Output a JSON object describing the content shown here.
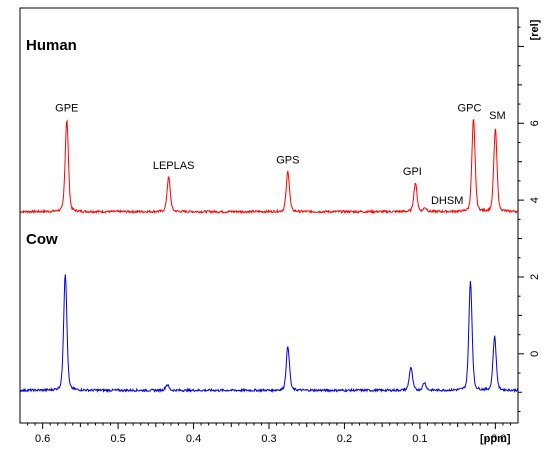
{
  "chart_data": {
    "type": "line",
    "xlabel": "[ppm]",
    "ylabel": "[rel]",
    "xlim": [
      0.63,
      -0.03
    ],
    "ylim": [
      -1.8,
      9.0
    ],
    "x_ticks": [
      0.6,
      0.5,
      0.4,
      0.3,
      0.2,
      0.1,
      0.0
    ],
    "x_tick_labels": [
      "0.6",
      "0.5",
      "0.4",
      "0.3",
      "0.2",
      "0.1",
      "- 0.0"
    ],
    "y_ticks": [
      0,
      2,
      4,
      6
    ],
    "y_tick_labels": [
      "0",
      "2",
      "4",
      "6"
    ],
    "series": [
      {
        "name": "Human",
        "color": "#ff0000",
        "baseline": 3.7,
        "peaks": [
          {
            "label": "GPE",
            "x": 0.568,
            "height": 6.1
          },
          {
            "label": "LEPLAS",
            "x": 0.433,
            "height": 4.6
          },
          {
            "label": "GPS",
            "x": 0.275,
            "height": 4.75
          },
          {
            "label": "GPI",
            "x": 0.106,
            "height": 4.45
          },
          {
            "label": "DHSM",
            "x": 0.093,
            "height": 3.8
          },
          {
            "label": "GPC",
            "x": 0.029,
            "height": 6.1
          },
          {
            "label": "SM",
            "x": 0.0,
            "height": 5.85
          }
        ]
      },
      {
        "name": "Cow",
        "color": "#0000dd",
        "baseline": -0.95,
        "peaks": [
          {
            "label": "GPE",
            "x": 0.57,
            "height": 2.1
          },
          {
            "label": "LEPLAS",
            "x": 0.435,
            "height": -0.8
          },
          {
            "label": "GPS",
            "x": 0.275,
            "height": 0.2
          },
          {
            "label": "GPI",
            "x": 0.112,
            "height": -0.35
          },
          {
            "label": "DHSM",
            "x": 0.094,
            "height": -0.75
          },
          {
            "label": "GPC",
            "x": 0.033,
            "height": 1.9
          },
          {
            "label": "SM",
            "x": 0.001,
            "height": 0.45
          }
        ]
      }
    ]
  }
}
